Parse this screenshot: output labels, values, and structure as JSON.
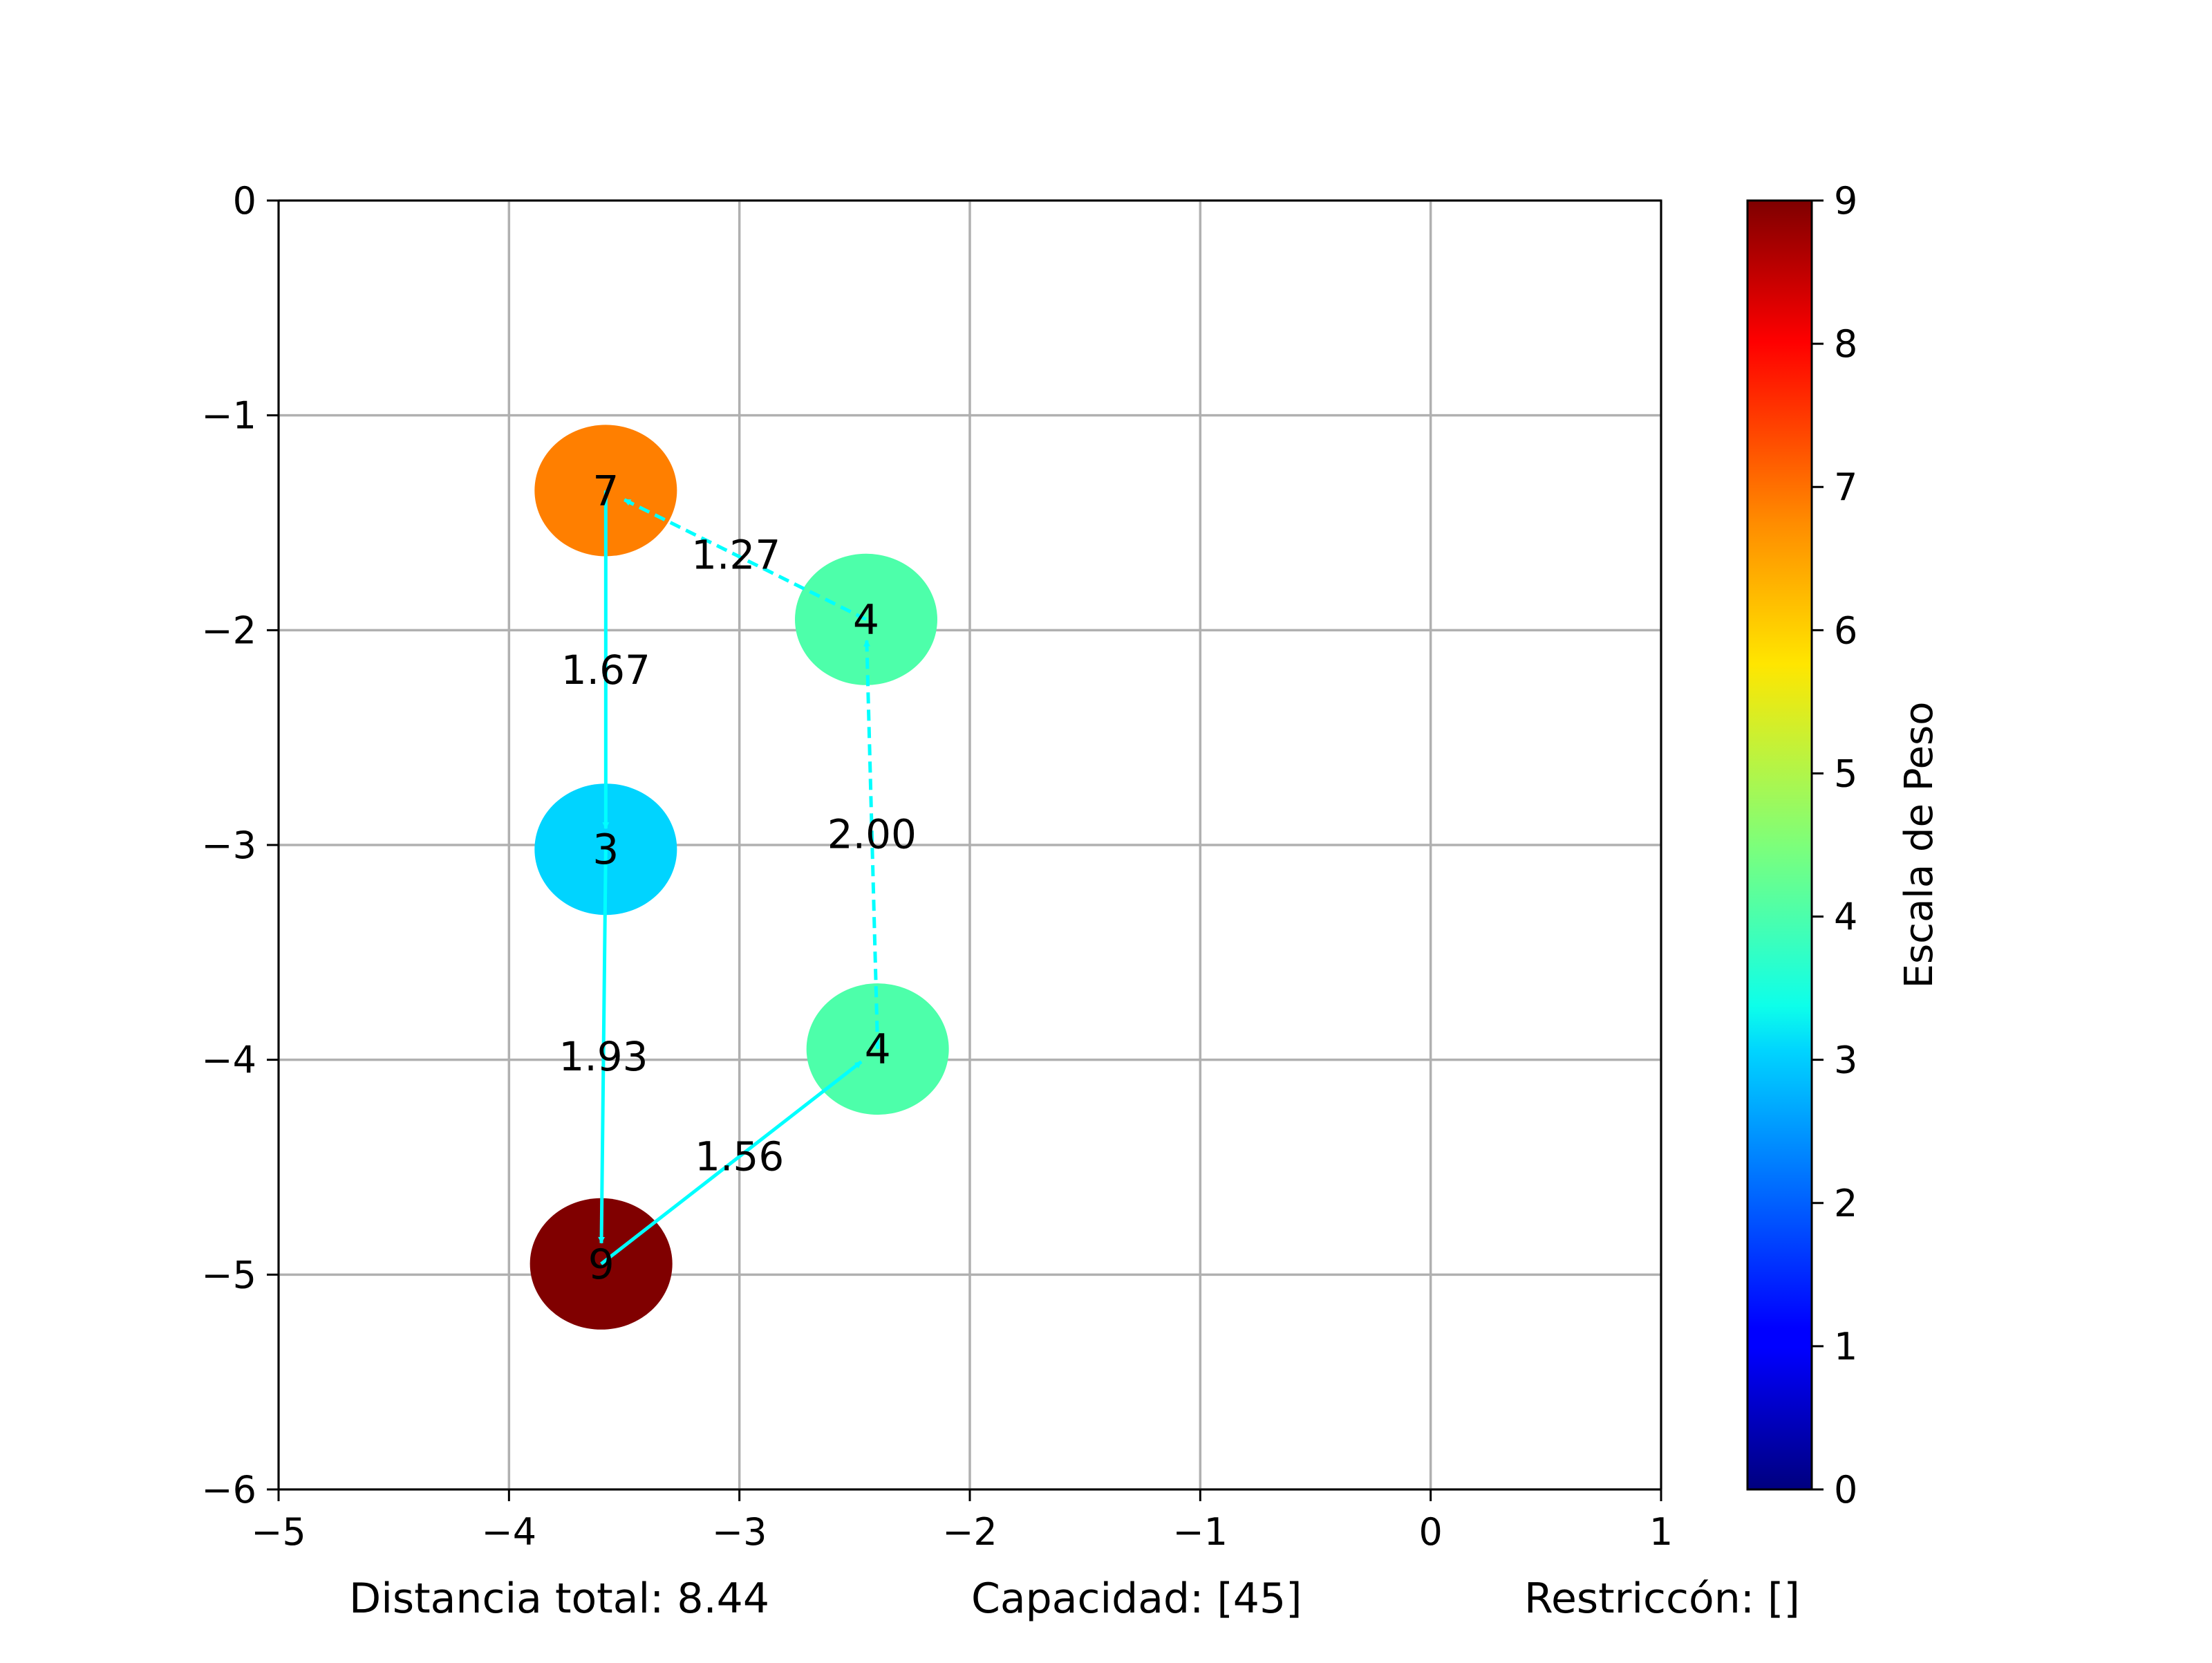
{
  "chart_data": {
    "type": "scatter",
    "subtype": "route-network",
    "xlim": [
      -5,
      1
    ],
    "ylim": [
      -6,
      0
    ],
    "grid": true,
    "xticks": [
      "−5",
      "−4",
      "−3",
      "−2",
      "−1",
      "0",
      "1"
    ],
    "yticks": [
      "0",
      "−1",
      "−2",
      "−3",
      "−4",
      "−5",
      "−6"
    ],
    "nodes": [
      {
        "x": -3.58,
        "y": -1.35,
        "weight": 7,
        "label": "7",
        "color": "#ff7f00"
      },
      {
        "x": -2.45,
        "y": -1.95,
        "weight": 4,
        "label": "4",
        "color": "#4dffaa"
      },
      {
        "x": -3.58,
        "y": -3.02,
        "weight": 3,
        "label": "3",
        "color": "#00d4ff"
      },
      {
        "x": -2.4,
        "y": -3.95,
        "weight": 4,
        "label": "4",
        "color": "#4dffaa"
      },
      {
        "x": -3.6,
        "y": -4.95,
        "weight": 9,
        "label": "9",
        "color": "#800000"
      }
    ],
    "edges": [
      {
        "from": 1,
        "to": 0,
        "label": "1.27",
        "style": "dashed"
      },
      {
        "from": 0,
        "to": 2,
        "label": "1.67",
        "style": "solid"
      },
      {
        "from": 3,
        "to": 1,
        "label": "2.00",
        "style": "dashed"
      },
      {
        "from": 2,
        "to": 4,
        "label": "1.93",
        "style": "solid"
      },
      {
        "from": 4,
        "to": 3,
        "label": "1.56",
        "style": "solid"
      }
    ],
    "edge_color": "#00ffff",
    "colorbar": {
      "label": "Escala de Peso",
      "range": [
        0,
        9
      ],
      "ticks": [
        "0",
        "1",
        "2",
        "3",
        "4",
        "5",
        "6",
        "7",
        "8",
        "9"
      ],
      "colormap": "jet"
    },
    "footer": {
      "distance": "Distancia total: 8.44",
      "capacity": "Capacidad: [45]",
      "restriction": "Restriccón: []"
    }
  }
}
